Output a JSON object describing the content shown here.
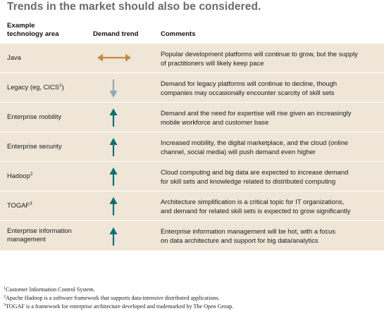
{
  "title": "Trends in the market should also be considered.",
  "headers": {
    "area_line1": "Example",
    "area_line2": "technology area",
    "trend": "Demand trend",
    "comments": "Comments"
  },
  "rows": [
    {
      "area": "Java",
      "area_sup": "",
      "area_line2": "",
      "trend": "flat",
      "comment_line1": "Popular development platforms will continue to grow, but the supply",
      "comment_line2": "of practitioners will likely keep pace"
    },
    {
      "area": "Legacy (eg, CICS",
      "area_sup": "1",
      "area_tail": ")",
      "area_line2": "",
      "trend": "down",
      "comment_line1": "Demand for legacy platforms will continue to decline, though",
      "comment_line2": "companies may occasionally encounter scarcity of skill sets"
    },
    {
      "area": "Enterprise mobility",
      "area_sup": "",
      "area_line2": "",
      "trend": "up",
      "comment_line1": "Demand and the need for expertise will rise given an increasingly",
      "comment_line2": "mobile workforce and customer base"
    },
    {
      "area": "Enterprise security",
      "area_sup": "",
      "area_line2": "",
      "trend": "up",
      "comment_line1": "Increased mobility, the digital marketplace, and the cloud (online",
      "comment_line2": "channel, social media) will push demand even higher"
    },
    {
      "area": "Hadoop",
      "area_sup": "2",
      "area_line2": "",
      "trend": "up",
      "comment_line1": "Cloud computing and big data are expected to increase demand",
      "comment_line2": "for skill sets and knowledge related to distributed computing"
    },
    {
      "area": "TOGAF",
      "area_sup": "3",
      "area_line2": "",
      "trend": "up",
      "comment_line1": "Architecture simplification is a critical topic for IT organizations,",
      "comment_line2": "and demand for related skill sets is expected to grow significantly"
    },
    {
      "area": "Enterprise information",
      "area_sup": "",
      "area_line2": "management",
      "trend": "up",
      "comment_line1": "Enterprise information management will be hot, with a focus",
      "comment_line2": "on data architecture and support for big data/analytics"
    }
  ],
  "footnotes": [
    {
      "num": "1",
      "text": "Customer Information Control System."
    },
    {
      "num": "2",
      "text": "Apache Hadoop is a software framework that supports data-intensive distributed applications."
    },
    {
      "num": "3",
      "text": "TOGAF is a framework for enterprise architecture developed and trademarked by The Open Group."
    }
  ],
  "colors": {
    "row_bg": "#efe6d8",
    "arrow_up": "#0c6f74",
    "arrow_down": "#8fa7b6",
    "arrow_flat": "#c78b3c"
  }
}
